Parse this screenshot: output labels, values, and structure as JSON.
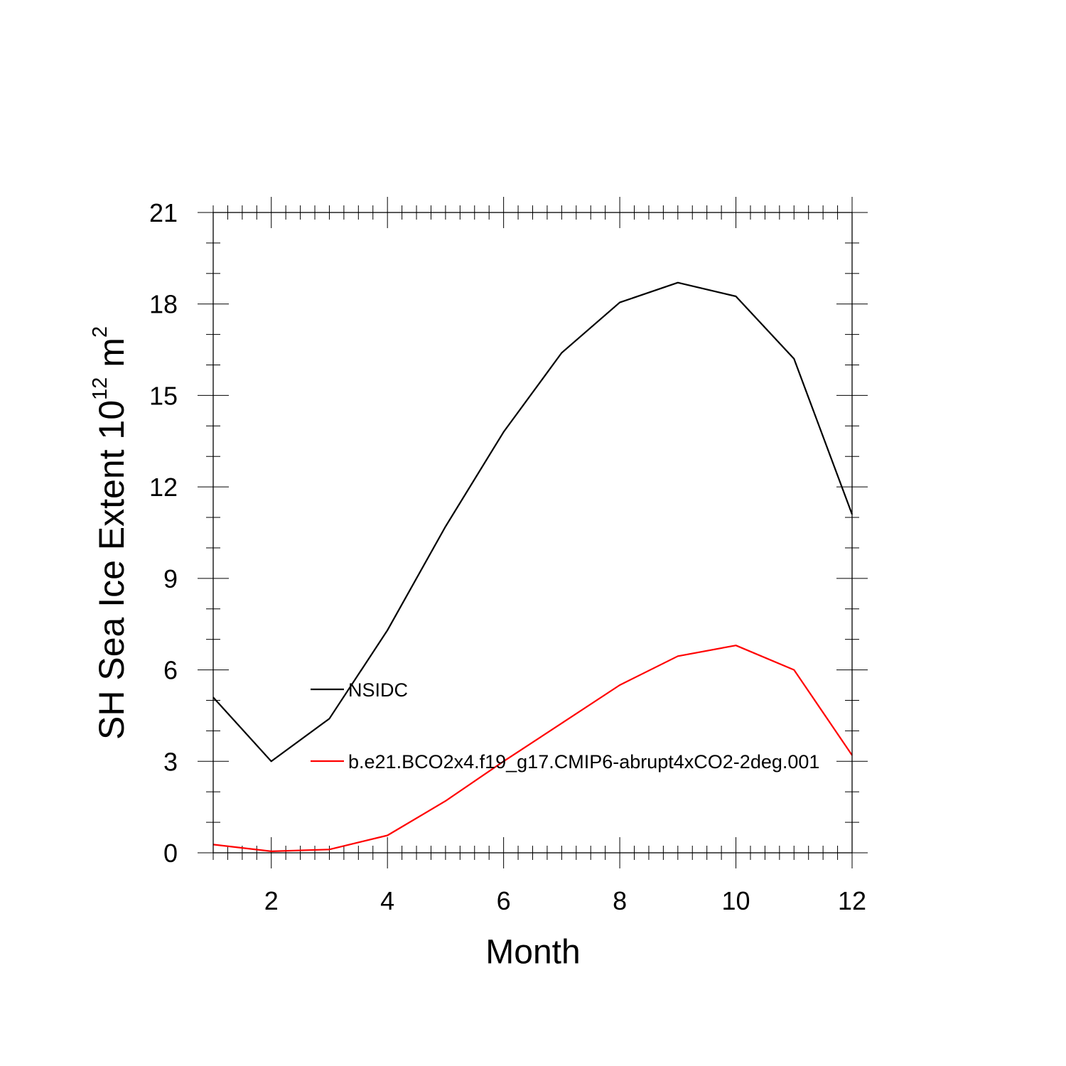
{
  "chart_data": {
    "type": "line",
    "x": [
      1,
      2,
      3,
      4,
      5,
      6,
      7,
      8,
      9,
      10,
      11,
      12
    ],
    "series": [
      {
        "name": "NSIDC",
        "color": "#000000",
        "values": [
          5.1,
          3.0,
          4.4,
          7.3,
          10.7,
          13.8,
          16.4,
          18.05,
          18.7,
          18.25,
          16.2,
          11.1
        ]
      },
      {
        "name": "b.e21.BCO2x4.f19_g17.CMIP6-abrupt4xCO2-2deg.001",
        "color": "#ff0000",
        "values": [
          0.27,
          0.05,
          0.11,
          0.57,
          1.7,
          3.0,
          4.25,
          5.5,
          6.45,
          6.8,
          6.0,
          3.2
        ]
      }
    ],
    "xlabel": "Month",
    "ylabel": {
      "text": "SH Sea Ice Extent 10",
      "sup1": "12",
      "unit": " m",
      "sup2": "2"
    },
    "xlim": [
      1,
      12
    ],
    "ylim": [
      0,
      21
    ],
    "xticks": [
      2,
      4,
      6,
      8,
      10,
      12
    ],
    "yticks": [
      0,
      3,
      6,
      9,
      12,
      15,
      18,
      21
    ],
    "grid": false,
    "legend_position": "inside-left"
  }
}
